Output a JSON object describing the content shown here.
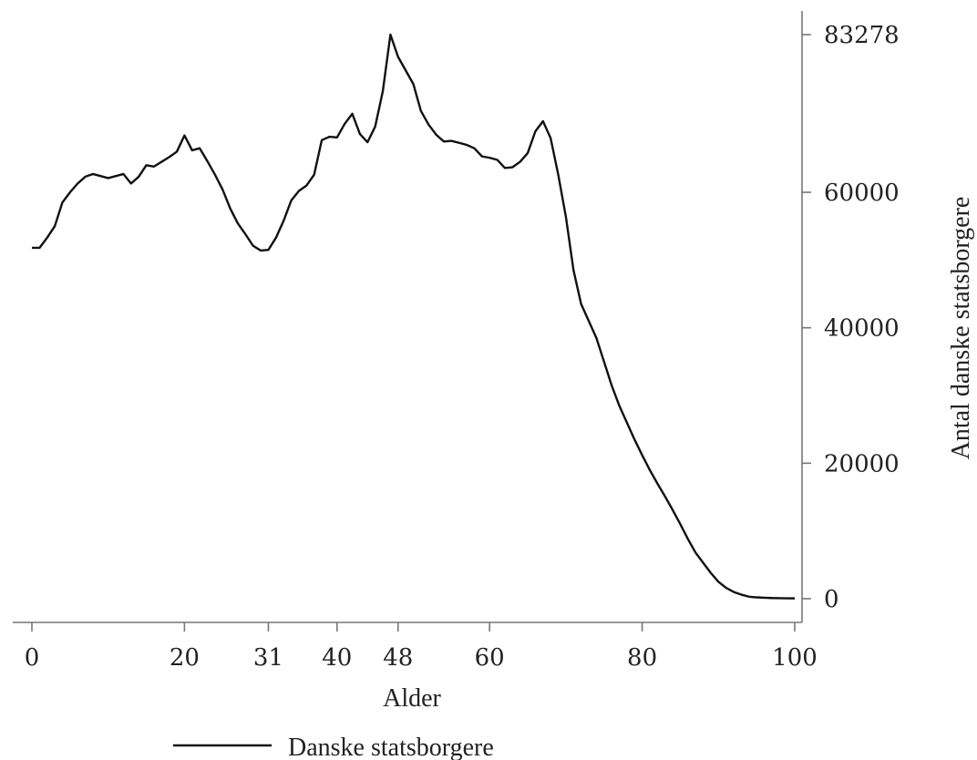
{
  "chart_data": {
    "type": "line",
    "xlabel": "Alder",
    "ylabel": "Antal danske statsborgere",
    "xlim": [
      0,
      100
    ],
    "ylim": [
      0,
      83278
    ],
    "x_ticks": [
      {
        "value": 0,
        "label": "0"
      },
      {
        "value": 20,
        "label": "20"
      },
      {
        "value": 31,
        "label": "31"
      },
      {
        "value": 40,
        "label": "40"
      },
      {
        "value": 48,
        "label": "48"
      },
      {
        "value": 60,
        "label": "60"
      },
      {
        "value": 80,
        "label": "80"
      },
      {
        "value": 100,
        "label": "100"
      }
    ],
    "y_ticks": [
      {
        "value": 0,
        "label": "0"
      },
      {
        "value": 20000,
        "label": "20000"
      },
      {
        "value": 40000,
        "label": "40000"
      },
      {
        "value": 60000,
        "label": "60000"
      },
      {
        "value": 83278,
        "label": "83278"
      }
    ],
    "y_axis_position": "right",
    "grid": false,
    "legend_position": "bottom",
    "series": [
      {
        "name": "Danske statsborgere",
        "color": "#111111",
        "x": [
          0,
          1,
          2,
          3,
          4,
          5,
          6,
          7,
          8,
          9,
          10,
          11,
          12,
          13,
          14,
          15,
          16,
          17,
          18,
          19,
          20,
          21,
          22,
          23,
          24,
          25,
          26,
          27,
          28,
          29,
          30,
          31,
          32,
          33,
          34,
          35,
          36,
          37,
          38,
          39,
          40,
          41,
          42,
          43,
          44,
          45,
          46,
          47,
          48,
          49,
          50,
          51,
          52,
          53,
          54,
          55,
          56,
          57,
          58,
          59,
          60,
          61,
          62,
          63,
          64,
          65,
          66,
          67,
          68,
          69,
          70,
          71,
          72,
          73,
          74,
          75,
          76,
          77,
          78,
          79,
          80,
          81,
          82,
          83,
          84,
          85,
          86,
          87,
          88,
          89,
          90,
          91,
          92,
          93,
          94,
          95,
          96,
          97,
          98,
          99,
          100
        ],
        "values": [
          51800,
          51800,
          53300,
          55000,
          58500,
          60000,
          61300,
          62300,
          62700,
          62400,
          62100,
          62400,
          62700,
          61300,
          62300,
          64000,
          63800,
          64500,
          65200,
          66000,
          68400,
          66200,
          66500,
          64600,
          62600,
          60400,
          57600,
          55400,
          53800,
          52100,
          51400,
          51500,
          53300,
          55800,
          58800,
          60200,
          61000,
          62600,
          67700,
          68200,
          68100,
          70100,
          71600,
          68600,
          67400,
          69700,
          74900,
          83278,
          80000,
          78000,
          76000,
          72000,
          70000,
          68500,
          67500,
          67600,
          67300,
          67000,
          66500,
          65300,
          65100,
          64800,
          63600,
          63700,
          64500,
          65800,
          69000,
          70500,
          68000,
          62600,
          56400,
          48500,
          43500,
          41000,
          38500,
          35000,
          31500,
          28500,
          26000,
          23500,
          21200,
          19000,
          17000,
          15100,
          13100,
          11000,
          8800,
          6800,
          5300,
          3800,
          2500,
          1600,
          1000,
          600,
          300,
          200,
          150,
          100,
          80,
          60,
          50
        ]
      }
    ]
  }
}
